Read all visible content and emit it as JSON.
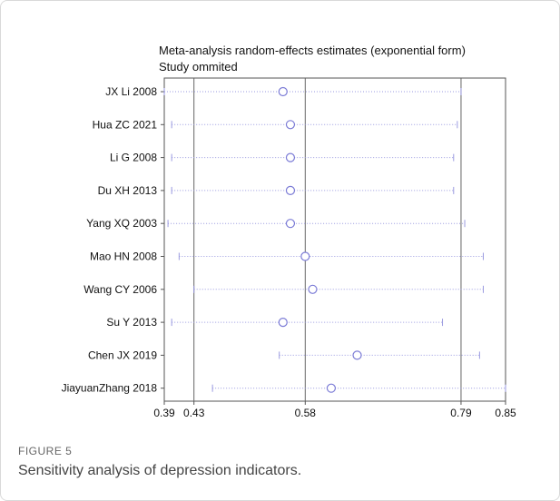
{
  "chart_data": {
    "type": "scatter",
    "title": "Meta-analysis random-effects estimates (exponential form)",
    "subtitle": "Study ommited",
    "xlim": [
      0.39,
      0.85
    ],
    "x_ticks": [
      "0.39",
      "0.43",
      "0.58",
      "0.79",
      "0.85"
    ],
    "x_tick_values": [
      0.39,
      0.43,
      0.58,
      0.79,
      0.85
    ],
    "reference_lines": [
      0.43,
      0.58,
      0.79
    ],
    "studies": [
      {
        "label": "JX Li 2008",
        "estimate": 0.55,
        "lower": 0.39,
        "upper": 0.79
      },
      {
        "label": "Hua ZC 2021",
        "estimate": 0.56,
        "lower": 0.4,
        "upper": 0.785
      },
      {
        "label": "Li G 2008",
        "estimate": 0.56,
        "lower": 0.4,
        "upper": 0.78
      },
      {
        "label": "Du XH 2013",
        "estimate": 0.56,
        "lower": 0.4,
        "upper": 0.78
      },
      {
        "label": "Yang XQ 2003",
        "estimate": 0.56,
        "lower": 0.395,
        "upper": 0.795
      },
      {
        "label": "Mao HN 2008",
        "estimate": 0.58,
        "lower": 0.41,
        "upper": 0.82
      },
      {
        "label": "Wang CY 2006",
        "estimate": 0.59,
        "lower": 0.43,
        "upper": 0.82
      },
      {
        "label": "Su Y 2013",
        "estimate": 0.55,
        "lower": 0.4,
        "upper": 0.765
      },
      {
        "label": "Chen JX 2019",
        "estimate": 0.65,
        "lower": 0.545,
        "upper": 0.815
      },
      {
        "label": "JiayuanZhang 2018",
        "estimate": 0.615,
        "lower": 0.455,
        "upper": 0.85
      }
    ],
    "marker_color": "#7b7bd6",
    "ci_color": "#9a9ae0"
  },
  "figure": {
    "label": "FIGURE 5",
    "caption": "Sensitivity analysis of depression indicators."
  }
}
